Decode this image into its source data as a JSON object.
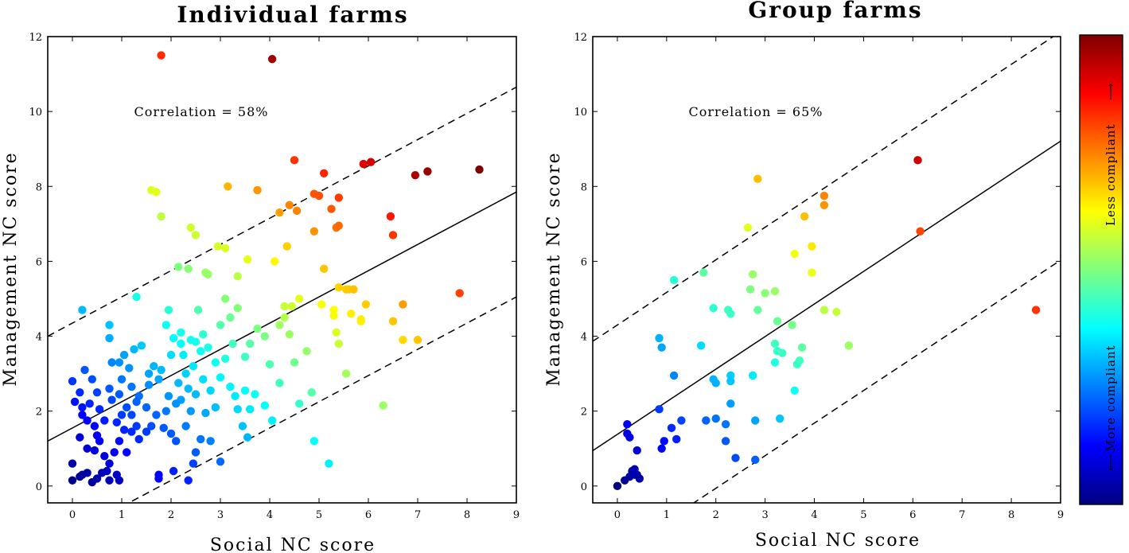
{
  "chart_data": [
    {
      "type": "scatter",
      "title": "Individual farms",
      "xlabel": "Social NC score",
      "ylabel": "Management NC score",
      "xlim": [
        -0.5,
        9
      ],
      "ylim": [
        -0.45,
        12
      ],
      "xticks": [
        "0",
        "1",
        "2",
        "3",
        "4",
        "5",
        "6",
        "7",
        "8",
        "9"
      ],
      "yticks": [
        "0",
        "2",
        "4",
        "6",
        "8",
        "10",
        "12"
      ],
      "annotation": "Correlation = 58%",
      "lines": [
        {
          "name": "fit",
          "style": "solid",
          "intercept": 1.55,
          "slope": 0.7
        },
        {
          "name": "upper band",
          "style": "dashed",
          "intercept": 4.35,
          "slope": 0.7
        },
        {
          "name": "lower band",
          "style": "dashed",
          "intercept": -1.25,
          "slope": 0.7
        }
      ],
      "points": [
        [
          1.8,
          11.5
        ],
        [
          4.05,
          11.4
        ],
        [
          0.2,
          4.7
        ],
        [
          8.25,
          8.45
        ],
        [
          7.2,
          8.4
        ],
        [
          6.95,
          8.3
        ],
        [
          6.05,
          8.65
        ],
        [
          5.9,
          8.6
        ],
        [
          5.1,
          8.35
        ],
        [
          4.5,
          8.7
        ],
        [
          7.85,
          5.15
        ],
        [
          6.3,
          2.15
        ],
        [
          5.2,
          0.6
        ],
        [
          4.9,
          1.2
        ],
        [
          1.6,
          7.9
        ],
        [
          1.7,
          7.85
        ],
        [
          1.8,
          7.2
        ],
        [
          3.15,
          8.0
        ],
        [
          3.75,
          7.9
        ],
        [
          4.4,
          7.5
        ],
        [
          4.2,
          7.3
        ],
        [
          4.55,
          7.35
        ],
        [
          4.9,
          7.8
        ],
        [
          5.0,
          7.75
        ],
        [
          5.4,
          7.7
        ],
        [
          5.25,
          7.4
        ],
        [
          6.45,
          7.2
        ],
        [
          6.5,
          6.7
        ],
        [
          5.35,
          6.9
        ],
        [
          5.4,
          6.95
        ],
        [
          4.9,
          6.8
        ],
        [
          4.35,
          6.4
        ],
        [
          4.1,
          6.0
        ],
        [
          5.1,
          5.8
        ],
        [
          3.55,
          6.05
        ],
        [
          2.95,
          6.4
        ],
        [
          3.1,
          6.35
        ],
        [
          2.4,
          6.9
        ],
        [
          2.5,
          6.7
        ],
        [
          2.15,
          5.85
        ],
        [
          2.35,
          5.8
        ],
        [
          1.3,
          5.05
        ],
        [
          5.4,
          5.3
        ],
        [
          5.55,
          5.25
        ],
        [
          5.6,
          5.25
        ],
        [
          5.7,
          5.25
        ],
        [
          5.95,
          4.85
        ],
        [
          5.85,
          4.45
        ],
        [
          5.85,
          4.4
        ],
        [
          5.65,
          4.6
        ],
        [
          5.3,
          4.7
        ],
        [
          5.3,
          4.55
        ],
        [
          6.5,
          4.4
        ],
        [
          6.7,
          4.85
        ],
        [
          7.0,
          3.9
        ],
        [
          6.7,
          3.9
        ],
        [
          5.4,
          3.8
        ],
        [
          5.55,
          3.0
        ],
        [
          5.35,
          4.1
        ],
        [
          5.05,
          4.85
        ],
        [
          4.6,
          5.0
        ],
        [
          4.3,
          4.8
        ],
        [
          4.45,
          4.8
        ],
        [
          4.3,
          4.5
        ],
        [
          4.2,
          4.3
        ],
        [
          4.4,
          4.05
        ],
        [
          4.5,
          3.3
        ],
        [
          4.75,
          3.6
        ],
        [
          4.85,
          2.5
        ],
        [
          4.6,
          2.2
        ],
        [
          4.2,
          2.75
        ],
        [
          4.0,
          3.25
        ],
        [
          3.35,
          5.6
        ],
        [
          3.1,
          5.0
        ],
        [
          3.35,
          4.75
        ],
        [
          3.2,
          4.5
        ],
        [
          3.0,
          4.3
        ],
        [
          2.7,
          5.7
        ],
        [
          2.75,
          5.65
        ],
        [
          2.55,
          4.7
        ],
        [
          2.65,
          4.05
        ],
        [
          2.5,
          3.85
        ],
        [
          2.4,
          3.9
        ],
        [
          2.2,
          4.1
        ],
        [
          1.95,
          4.7
        ],
        [
          1.9,
          4.3
        ],
        [
          2.05,
          3.95
        ],
        [
          2.25,
          3.5
        ],
        [
          2.3,
          3.0
        ],
        [
          2.45,
          3.2
        ],
        [
          2.6,
          3.6
        ],
        [
          2.75,
          3.7
        ],
        [
          2.9,
          3.3
        ],
        [
          3.1,
          3.4
        ],
        [
          3.25,
          3.8
        ],
        [
          3.5,
          3.45
        ],
        [
          3.6,
          3.8
        ],
        [
          3.75,
          4.2
        ],
        [
          3.9,
          4.0
        ],
        [
          3.5,
          2.55
        ],
        [
          3.7,
          2.45
        ],
        [
          3.3,
          2.4
        ],
        [
          3.45,
          1.6
        ],
        [
          3.35,
          2.05
        ],
        [
          3.55,
          1.3
        ],
        [
          3.0,
          2.9
        ],
        [
          2.8,
          2.55
        ],
        [
          2.9,
          2.1
        ],
        [
          2.65,
          2.85
        ],
        [
          2.5,
          2.45
        ],
        [
          2.35,
          2.6
        ],
        [
          2.2,
          2.3
        ],
        [
          2.1,
          2.2
        ],
        [
          1.95,
          2.4
        ],
        [
          1.75,
          2.85
        ],
        [
          1.65,
          3.2
        ],
        [
          1.55,
          3.0
        ],
        [
          1.4,
          3.75
        ],
        [
          1.25,
          3.65
        ],
        [
          1.15,
          3.15
        ],
        [
          1.05,
          3.5
        ],
        [
          1.0,
          2.85
        ],
        [
          0.95,
          3.3
        ],
        [
          0.8,
          3.3
        ],
        [
          0.75,
          3.95
        ],
        [
          0.75,
          4.3
        ],
        [
          0.95,
          2.45
        ],
        [
          1.2,
          2.65
        ],
        [
          1.35,
          2.4
        ],
        [
          1.5,
          2.1
        ],
        [
          1.7,
          1.9
        ],
        [
          1.85,
          1.55
        ],
        [
          2.0,
          1.4
        ],
        [
          2.3,
          1.6
        ],
        [
          2.1,
          1.2
        ],
        [
          2.6,
          1.25
        ],
        [
          2.8,
          1.2
        ],
        [
          2.5,
          0.9
        ],
        [
          2.45,
          0.6
        ],
        [
          2.35,
          0.15
        ],
        [
          2.05,
          0.4
        ],
        [
          3.0,
          0.65
        ],
        [
          1.75,
          0.2
        ],
        [
          1.75,
          0.3
        ],
        [
          1.5,
          1.45
        ],
        [
          1.35,
          1.25
        ],
        [
          1.2,
          1.45
        ],
        [
          1.05,
          1.5
        ],
        [
          0.95,
          1.2
        ],
        [
          1.1,
          0.9
        ],
        [
          0.85,
          0.9
        ],
        [
          0.75,
          0.6
        ],
        [
          0.7,
          0.4
        ],
        [
          0.6,
          0.35
        ],
        [
          0.5,
          0.2
        ],
        [
          0.3,
          0.35
        ],
        [
          0.2,
          0.3
        ],
        [
          0.15,
          0.25
        ],
        [
          0.0,
          0.15
        ],
        [
          0.0,
          0.6
        ],
        [
          0.4,
          0.1
        ],
        [
          0.75,
          0.15
        ],
        [
          0.95,
          0.15
        ],
        [
          0.9,
          0.3
        ],
        [
          0.65,
          0.8
        ],
        [
          0.55,
          1.2
        ],
        [
          0.5,
          1.35
        ],
        [
          0.45,
          0.95
        ],
        [
          0.3,
          1.0
        ],
        [
          0.15,
          1.3
        ],
        [
          0.3,
          1.75
        ],
        [
          0.2,
          1.9
        ],
        [
          0.05,
          2.25
        ],
        [
          0.0,
          2.8
        ],
        [
          0.25,
          3.1
        ],
        [
          0.4,
          2.85
        ],
        [
          0.5,
          2.5
        ],
        [
          0.55,
          2.05
        ],
        [
          0.65,
          1.75
        ],
        [
          0.8,
          2.3
        ],
        [
          0.9,
          1.7
        ],
        [
          1.0,
          1.9
        ],
        [
          1.2,
          1.9
        ],
        [
          1.3,
          1.6
        ],
        [
          0.2,
          2.1
        ],
        [
          0.15,
          2.5
        ],
        [
          0.35,
          2.2
        ],
        [
          0.45,
          1.6
        ],
        [
          0.75,
          2.6
        ],
        [
          1.1,
          2.1
        ],
        [
          1.55,
          2.7
        ],
        [
          1.8,
          3.1
        ],
        [
          2.15,
          2.75
        ],
        [
          2.4,
          2.0
        ],
        [
          2.7,
          1.95
        ],
        [
          3.2,
          2.65
        ],
        [
          3.6,
          2.05
        ],
        [
          3.9,
          2.15
        ],
        [
          4.05,
          1.75
        ],
        [
          1.3,
          2.25
        ],
        [
          1.6,
          1.6
        ],
        [
          1.9,
          2.0
        ],
        [
          2.0,
          3.5
        ],
        [
          2.2,
          3.8
        ]
      ]
    },
    {
      "type": "scatter",
      "title": "Group farms",
      "xlabel": "Social NC score",
      "ylabel": "Management NC score",
      "xlim": [
        -0.5,
        9
      ],
      "ylim": [
        -0.45,
        12
      ],
      "xticks": [
        "0",
        "1",
        "2",
        "3",
        "4",
        "5",
        "6",
        "7",
        "8",
        "9"
      ],
      "yticks": [
        "0",
        "2",
        "4",
        "6",
        "8",
        "10",
        "12"
      ],
      "annotation": "Correlation = 65%",
      "lines": [
        {
          "name": "fit",
          "style": "solid",
          "intercept": 1.38,
          "slope": 0.87
        },
        {
          "name": "upper band",
          "style": "dashed",
          "intercept": 4.3,
          "slope": 0.87
        },
        {
          "name": "lower band",
          "style": "dashed",
          "intercept": -1.8,
          "slope": 0.87
        }
      ],
      "points": [
        [
          6.1,
          8.7
        ],
        [
          8.5,
          4.7
        ],
        [
          6.15,
          6.8
        ],
        [
          2.85,
          8.2
        ],
        [
          4.2,
          7.75
        ],
        [
          4.2,
          7.5
        ],
        [
          3.8,
          7.2
        ],
        [
          3.6,
          6.2
        ],
        [
          3.95,
          6.4
        ],
        [
          2.65,
          6.9
        ],
        [
          1.15,
          5.5
        ],
        [
          1.75,
          5.7
        ],
        [
          2.75,
          5.65
        ],
        [
          2.7,
          5.25
        ],
        [
          3.0,
          5.15
        ],
        [
          3.2,
          5.2
        ],
        [
          3.95,
          5.7
        ],
        [
          1.95,
          4.75
        ],
        [
          2.25,
          4.7
        ],
        [
          2.3,
          4.6
        ],
        [
          2.85,
          4.7
        ],
        [
          3.25,
          4.4
        ],
        [
          3.55,
          4.3
        ],
        [
          4.2,
          4.7
        ],
        [
          4.45,
          4.65
        ],
        [
          4.7,
          3.75
        ],
        [
          3.2,
          3.8
        ],
        [
          3.25,
          3.6
        ],
        [
          3.35,
          3.55
        ],
        [
          3.2,
          3.3
        ],
        [
          3.7,
          3.35
        ],
        [
          3.65,
          3.25
        ],
        [
          3.75,
          3.7
        ],
        [
          3.6,
          2.55
        ],
        [
          0.85,
          3.95
        ],
        [
          0.9,
          3.7
        ],
        [
          1.7,
          3.75
        ],
        [
          1.15,
          2.95
        ],
        [
          2.3,
          2.95
        ],
        [
          2.3,
          2.8
        ],
        [
          2.75,
          2.95
        ],
        [
          2.0,
          2.75
        ],
        [
          1.95,
          2.85
        ],
        [
          2.3,
          2.2
        ],
        [
          0.85,
          2.05
        ],
        [
          1.8,
          1.75
        ],
        [
          2.0,
          1.8
        ],
        [
          2.2,
          1.65
        ],
        [
          2.8,
          1.75
        ],
        [
          3.3,
          1.8
        ],
        [
          1.3,
          1.75
        ],
        [
          1.1,
          1.55
        ],
        [
          1.2,
          1.25
        ],
        [
          0.95,
          1.2
        ],
        [
          0.9,
          1.0
        ],
        [
          2.2,
          1.2
        ],
        [
          2.4,
          0.75
        ],
        [
          2.8,
          0.7
        ],
        [
          0.2,
          1.65
        ],
        [
          0.2,
          1.4
        ],
        [
          0.25,
          1.3
        ],
        [
          0.4,
          0.95
        ],
        [
          0.0,
          0.0
        ],
        [
          0.15,
          0.15
        ],
        [
          0.25,
          0.25
        ],
        [
          0.3,
          0.4
        ],
        [
          0.35,
          0.45
        ],
        [
          0.4,
          0.3
        ],
        [
          0.45,
          0.2
        ],
        [
          0.35,
          0.3
        ]
      ]
    }
  ],
  "colorbar": {
    "type": "colorbar",
    "colormap": "jet",
    "colors": [
      "#00007f",
      "#0000ff",
      "#007fff",
      "#00ffff",
      "#7fff7f",
      "#ffff00",
      "#ff7f00",
      "#ff0000",
      "#7f0000"
    ],
    "upper_label": "Less compliant",
    "lower_label": "More compliant",
    "upper_arrow": "⟶",
    "lower_arrow": "⟵"
  }
}
